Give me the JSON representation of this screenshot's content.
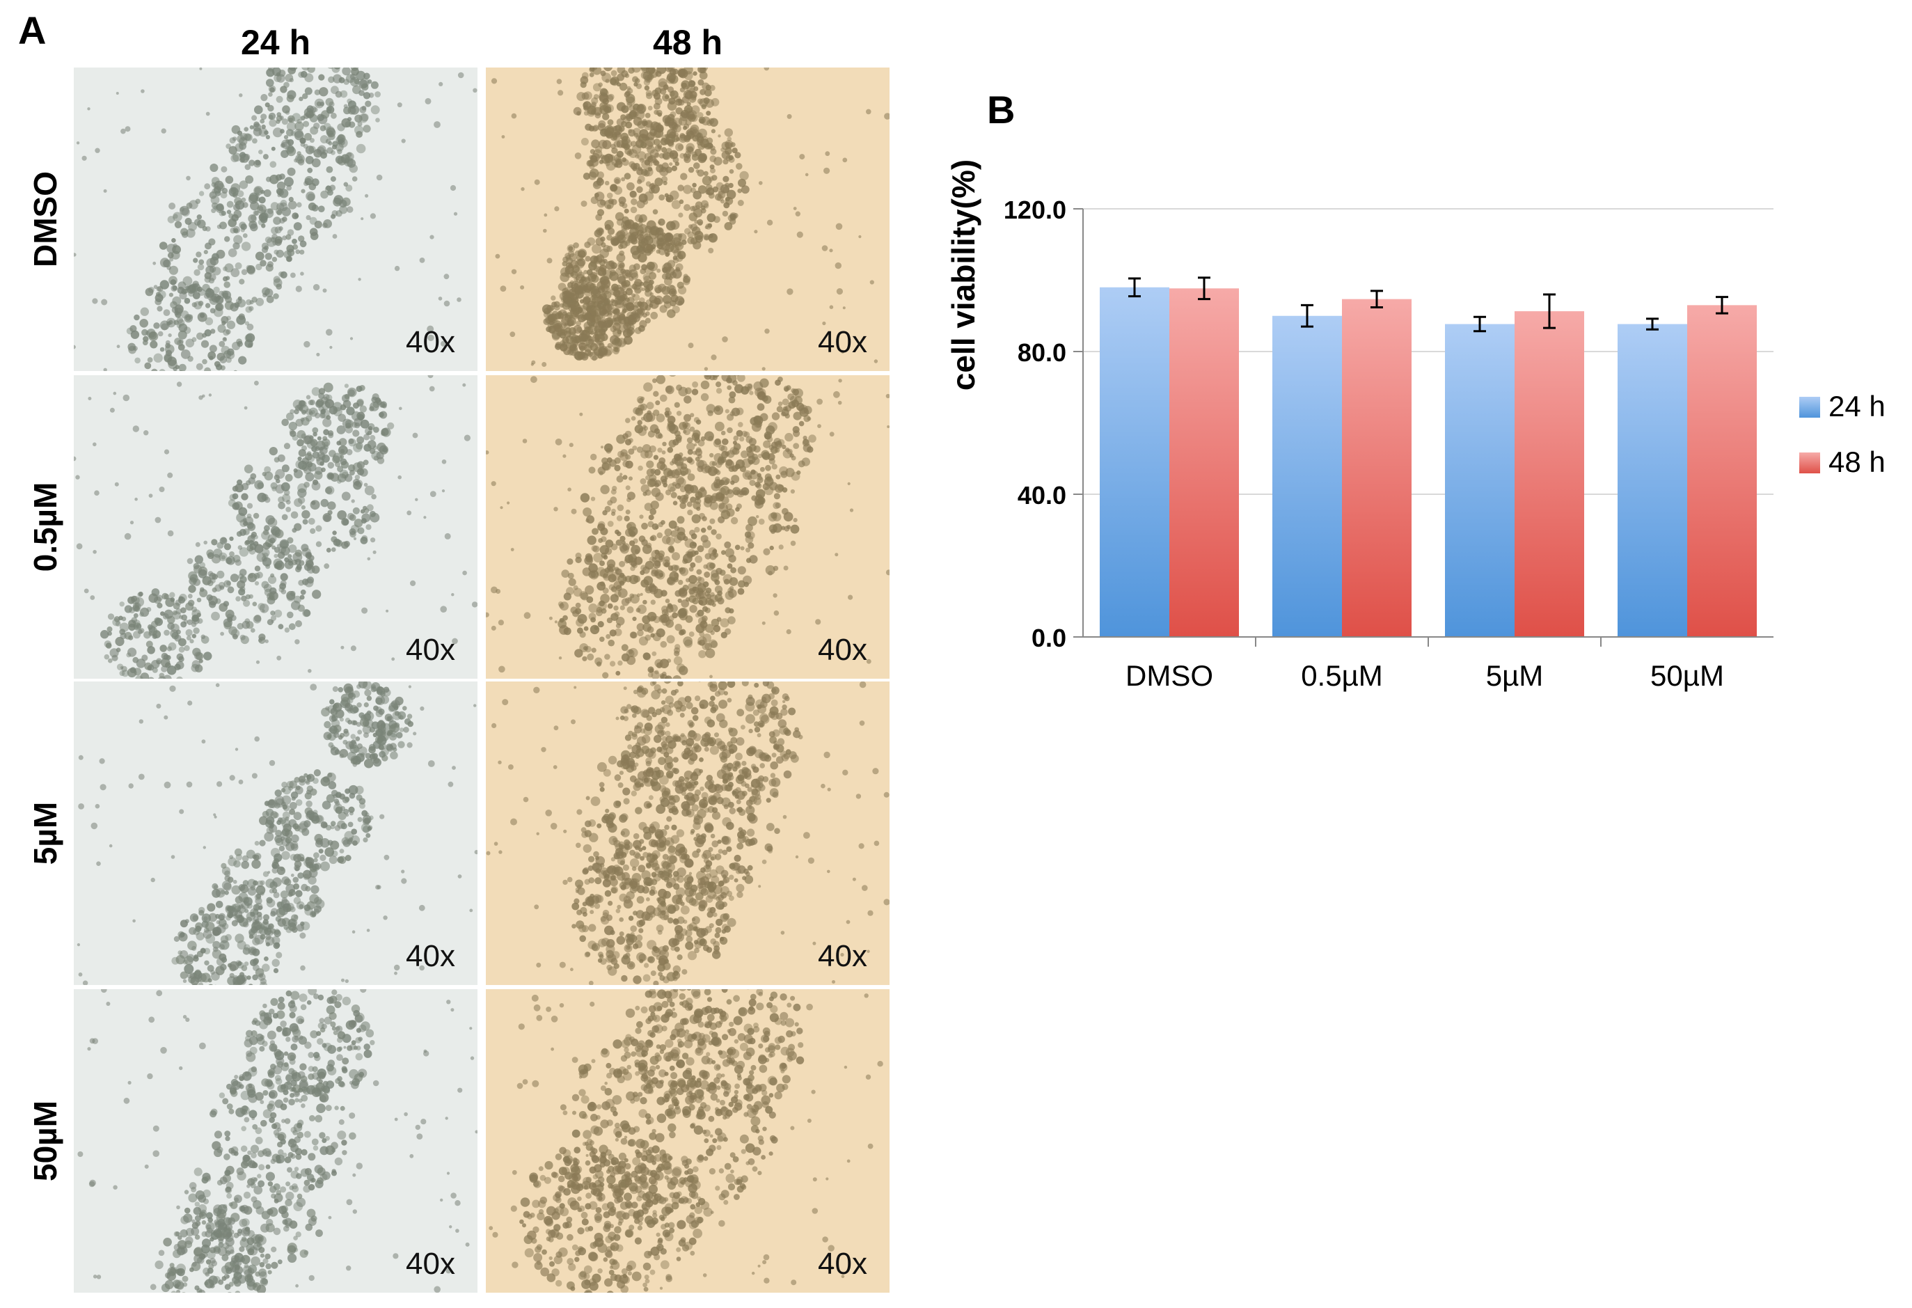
{
  "panel_a": {
    "letter": "A",
    "columns": [
      "24 h",
      "48 h"
    ],
    "rows": [
      "DMSO",
      "0.5µM",
      "5µM",
      "50µM"
    ],
    "magnification": "40x"
  },
  "panel_b": {
    "letter": "B"
  },
  "colors": {
    "bar_24h_top": "#aecdf5",
    "bar_24h_bottom": "#4f94db",
    "bar_48h_top": "#f6aaa8",
    "bar_48h_bottom": "#df5048",
    "tile_24h_bg": "#e8ecea",
    "tile_48h_bg": "#f2dcb8",
    "cells_24h": "#7a8478",
    "cells_48h": "#8a7a56"
  },
  "chart_data": {
    "type": "bar",
    "ylabel": "cell viability(%)",
    "xlabel": "",
    "categories": [
      "DMSO",
      "0.5µM",
      "5µM",
      "50µM"
    ],
    "ylim": [
      0,
      120
    ],
    "yticks": [
      "0.0",
      "40.0",
      "80.0",
      "120.0"
    ],
    "grid": true,
    "legend": "right",
    "series": [
      {
        "name": "24 h",
        "values": [
          98.0,
          90.0,
          87.7,
          87.7
        ],
        "errors": [
          2.5,
          3.0,
          2.0,
          1.5
        ]
      },
      {
        "name": "48 h",
        "values": [
          97.7,
          94.7,
          91.3,
          93.0
        ],
        "errors": [
          3.0,
          2.3,
          4.7,
          2.3
        ]
      }
    ]
  }
}
